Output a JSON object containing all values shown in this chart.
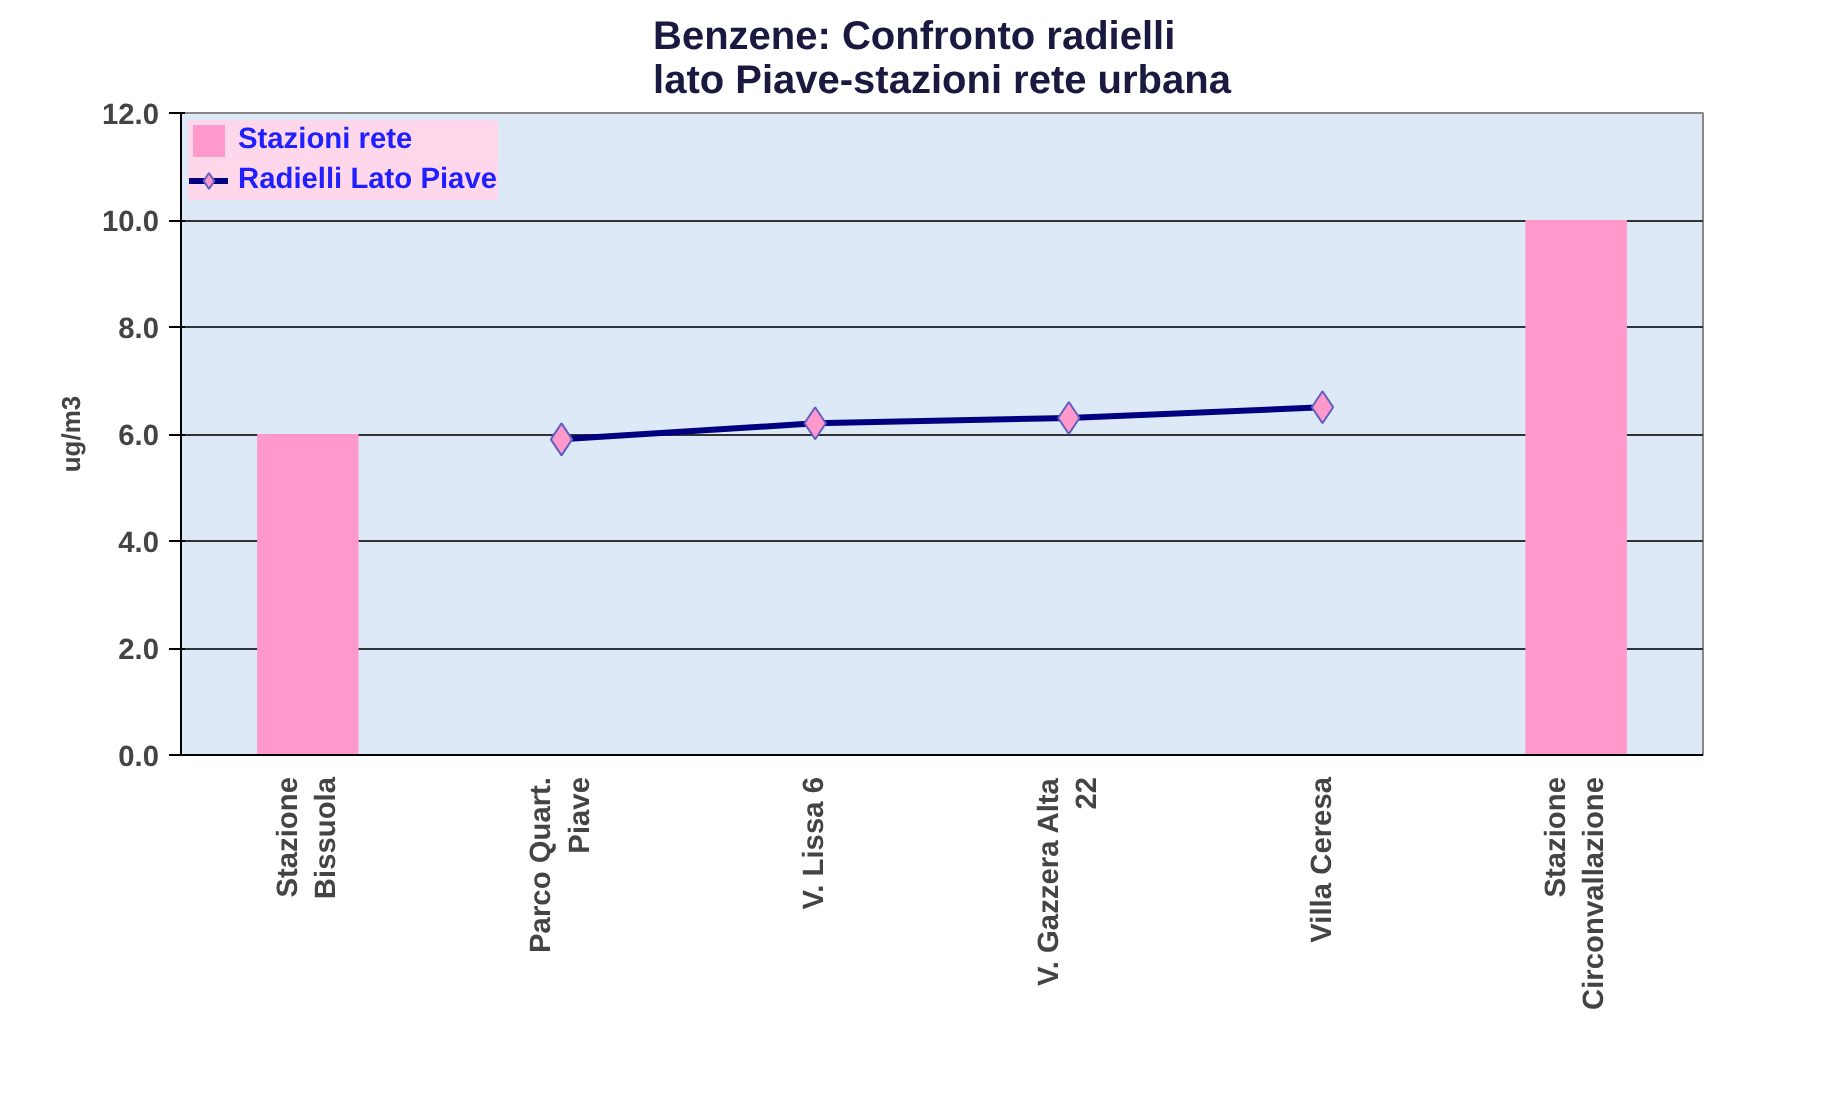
{
  "chart_data": {
    "type": "bar",
    "title": "Benzene: Confronto radielli\nlato Piave-stazioni rete urbana",
    "ylabel": "ug/m3",
    "categories": [
      "Stazione\nBissuola",
      "Parco Quart.\nPiave",
      "V. Lissa 6",
      "V. Gazzera Alta\n22",
      "Villa Ceresa",
      "Stazione\nCirconvallazione"
    ],
    "series": [
      {
        "name": "Stazioni rete",
        "color": "#ff99cc",
        "values": [
          6.0,
          null,
          null,
          null,
          null,
          10.0
        ]
      },
      {
        "name": "Radielli Lato Piave",
        "type": "line",
        "color": "#000080",
        "marker": "diamond",
        "line_style": "solid",
        "values": [
          null,
          5.9,
          6.2,
          6.3,
          6.5,
          null
        ]
      }
    ],
    "ylim": [
      0,
      12
    ],
    "yticks": [
      {
        "value": 0,
        "label": "0.0"
      },
      {
        "value": 2,
        "label": "2.0"
      },
      {
        "value": 4,
        "label": "4.0"
      },
      {
        "value": 6,
        "label": "6.0"
      },
      {
        "value": 8,
        "label": "8.0"
      },
      {
        "value": 10,
        "label": "10.0"
      },
      {
        "value": 12,
        "label": "12.0"
      }
    ],
    "grid": "y",
    "legend": "top left"
  }
}
